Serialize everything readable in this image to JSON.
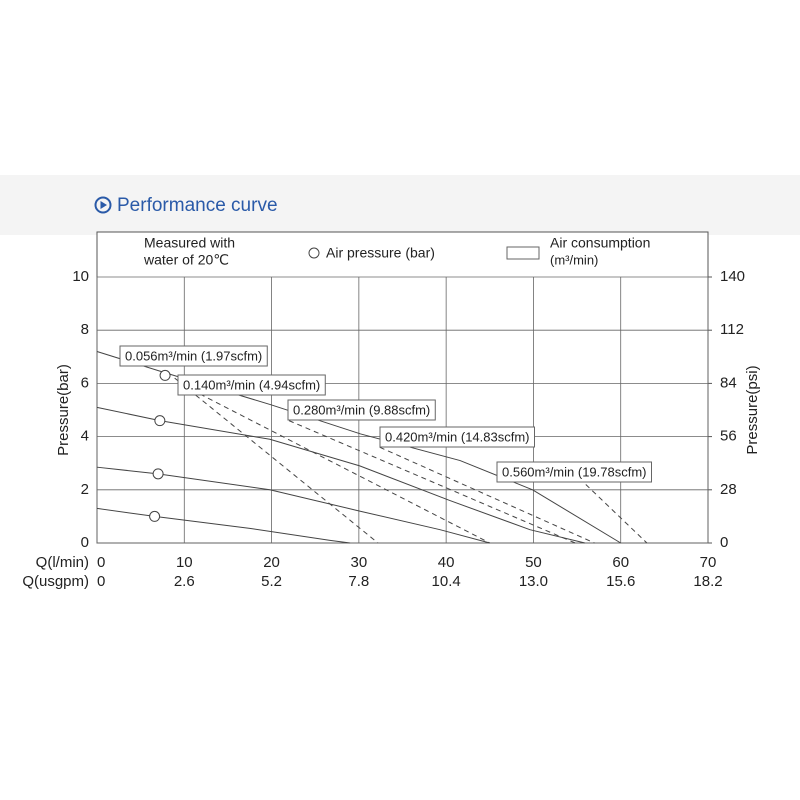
{
  "chart_data": {
    "type": "line",
    "title": "Performance curve",
    "note": [
      "Measured with",
      "water of 20℃"
    ],
    "marker_legend": "Air pressure (bar)",
    "consumption_legend": [
      "Air consumption",
      "(m³/min)"
    ],
    "x_label": "Q(l/min)",
    "x2_label": "Q(usgpm)",
    "y_label": "Pressure(bar)",
    "y2_label": "Pressure(psi)",
    "xlim": [
      0,
      70
    ],
    "xticks": [
      0,
      10,
      20,
      30,
      40,
      50,
      60,
      70
    ],
    "x2lim": [
      0,
      18.2
    ],
    "x2ticks": [
      0,
      2.6,
      5.2,
      7.8,
      10.4,
      {
        "value": 13.0,
        "label": "13.0"
      },
      15.6,
      18.2
    ],
    "ylim": [
      0,
      10
    ],
    "yticks": [
      0,
      2,
      4,
      6,
      8,
      10
    ],
    "y2lim": [
      0,
      140
    ],
    "y2ticks": [
      0,
      28,
      56,
      84,
      112,
      140
    ],
    "grid": true,
    "series": [
      {
        "style": "solid",
        "color": "#444444",
        "x": [
          0,
          7.8,
          19.9,
          30.2,
          41.6,
          49.9,
          60
        ],
        "values": [
          7.2,
          6.4,
          5.2,
          4.1,
          3.1,
          2.0,
          0
        ]
      },
      {
        "style": "solid",
        "color": "#444444",
        "x": [
          0,
          7.2,
          19.8,
          30.1,
          40.4,
          49.6,
          55.9
        ],
        "values": [
          5.1,
          4.6,
          3.9,
          2.9,
          1.6,
          0.5,
          0
        ]
      },
      {
        "style": "solid",
        "color": "#444444",
        "x": [
          0,
          7.0,
          19.8,
          30.1,
          39.3,
          45.0
        ],
        "values": [
          2.85,
          2.6,
          2.0,
          1.2,
          0.5,
          0
        ]
      },
      {
        "style": "solid",
        "color": "#444444",
        "x": [
          0,
          6.6,
          17.5,
          26.7,
          29.0
        ],
        "values": [
          1.3,
          1.0,
          0.55,
          0.1,
          0
        ]
      },
      {
        "name": "0.056m³/min (1.97scfm)",
        "style": "dashed",
        "color": "#444444",
        "x": [
          8.9,
          32.2
        ],
        "values": [
          6.2,
          0
        ]
      },
      {
        "name": "0.140m³/min (4.94scfm)",
        "style": "dashed",
        "color": "#444444",
        "x": [
          11.8,
          45.0
        ],
        "values": [
          5.6,
          0
        ]
      },
      {
        "name": "0.280m³/min (9.88scfm)",
        "style": "dashed",
        "color": "#444444",
        "x": [
          22.0,
          54.8
        ],
        "values": [
          4.6,
          0
        ]
      },
      {
        "name": "0.420m³/min (14.83scfm)",
        "style": "dashed",
        "color": "#444444",
        "x": [
          32.4,
          57.0
        ],
        "values": [
          3.6,
          0
        ]
      },
      {
        "name": "0.560m³/min (19.78scfm)",
        "style": "dashed",
        "color": "#444444",
        "x": [
          56.0,
          63.0
        ],
        "values": [
          2.2,
          0
        ]
      }
    ],
    "markers": {
      "x": [
        7.8,
        7.2,
        7.0,
        6.6
      ],
      "values": [
        6.3,
        4.6,
        2.6,
        1.0
      ]
    }
  }
}
